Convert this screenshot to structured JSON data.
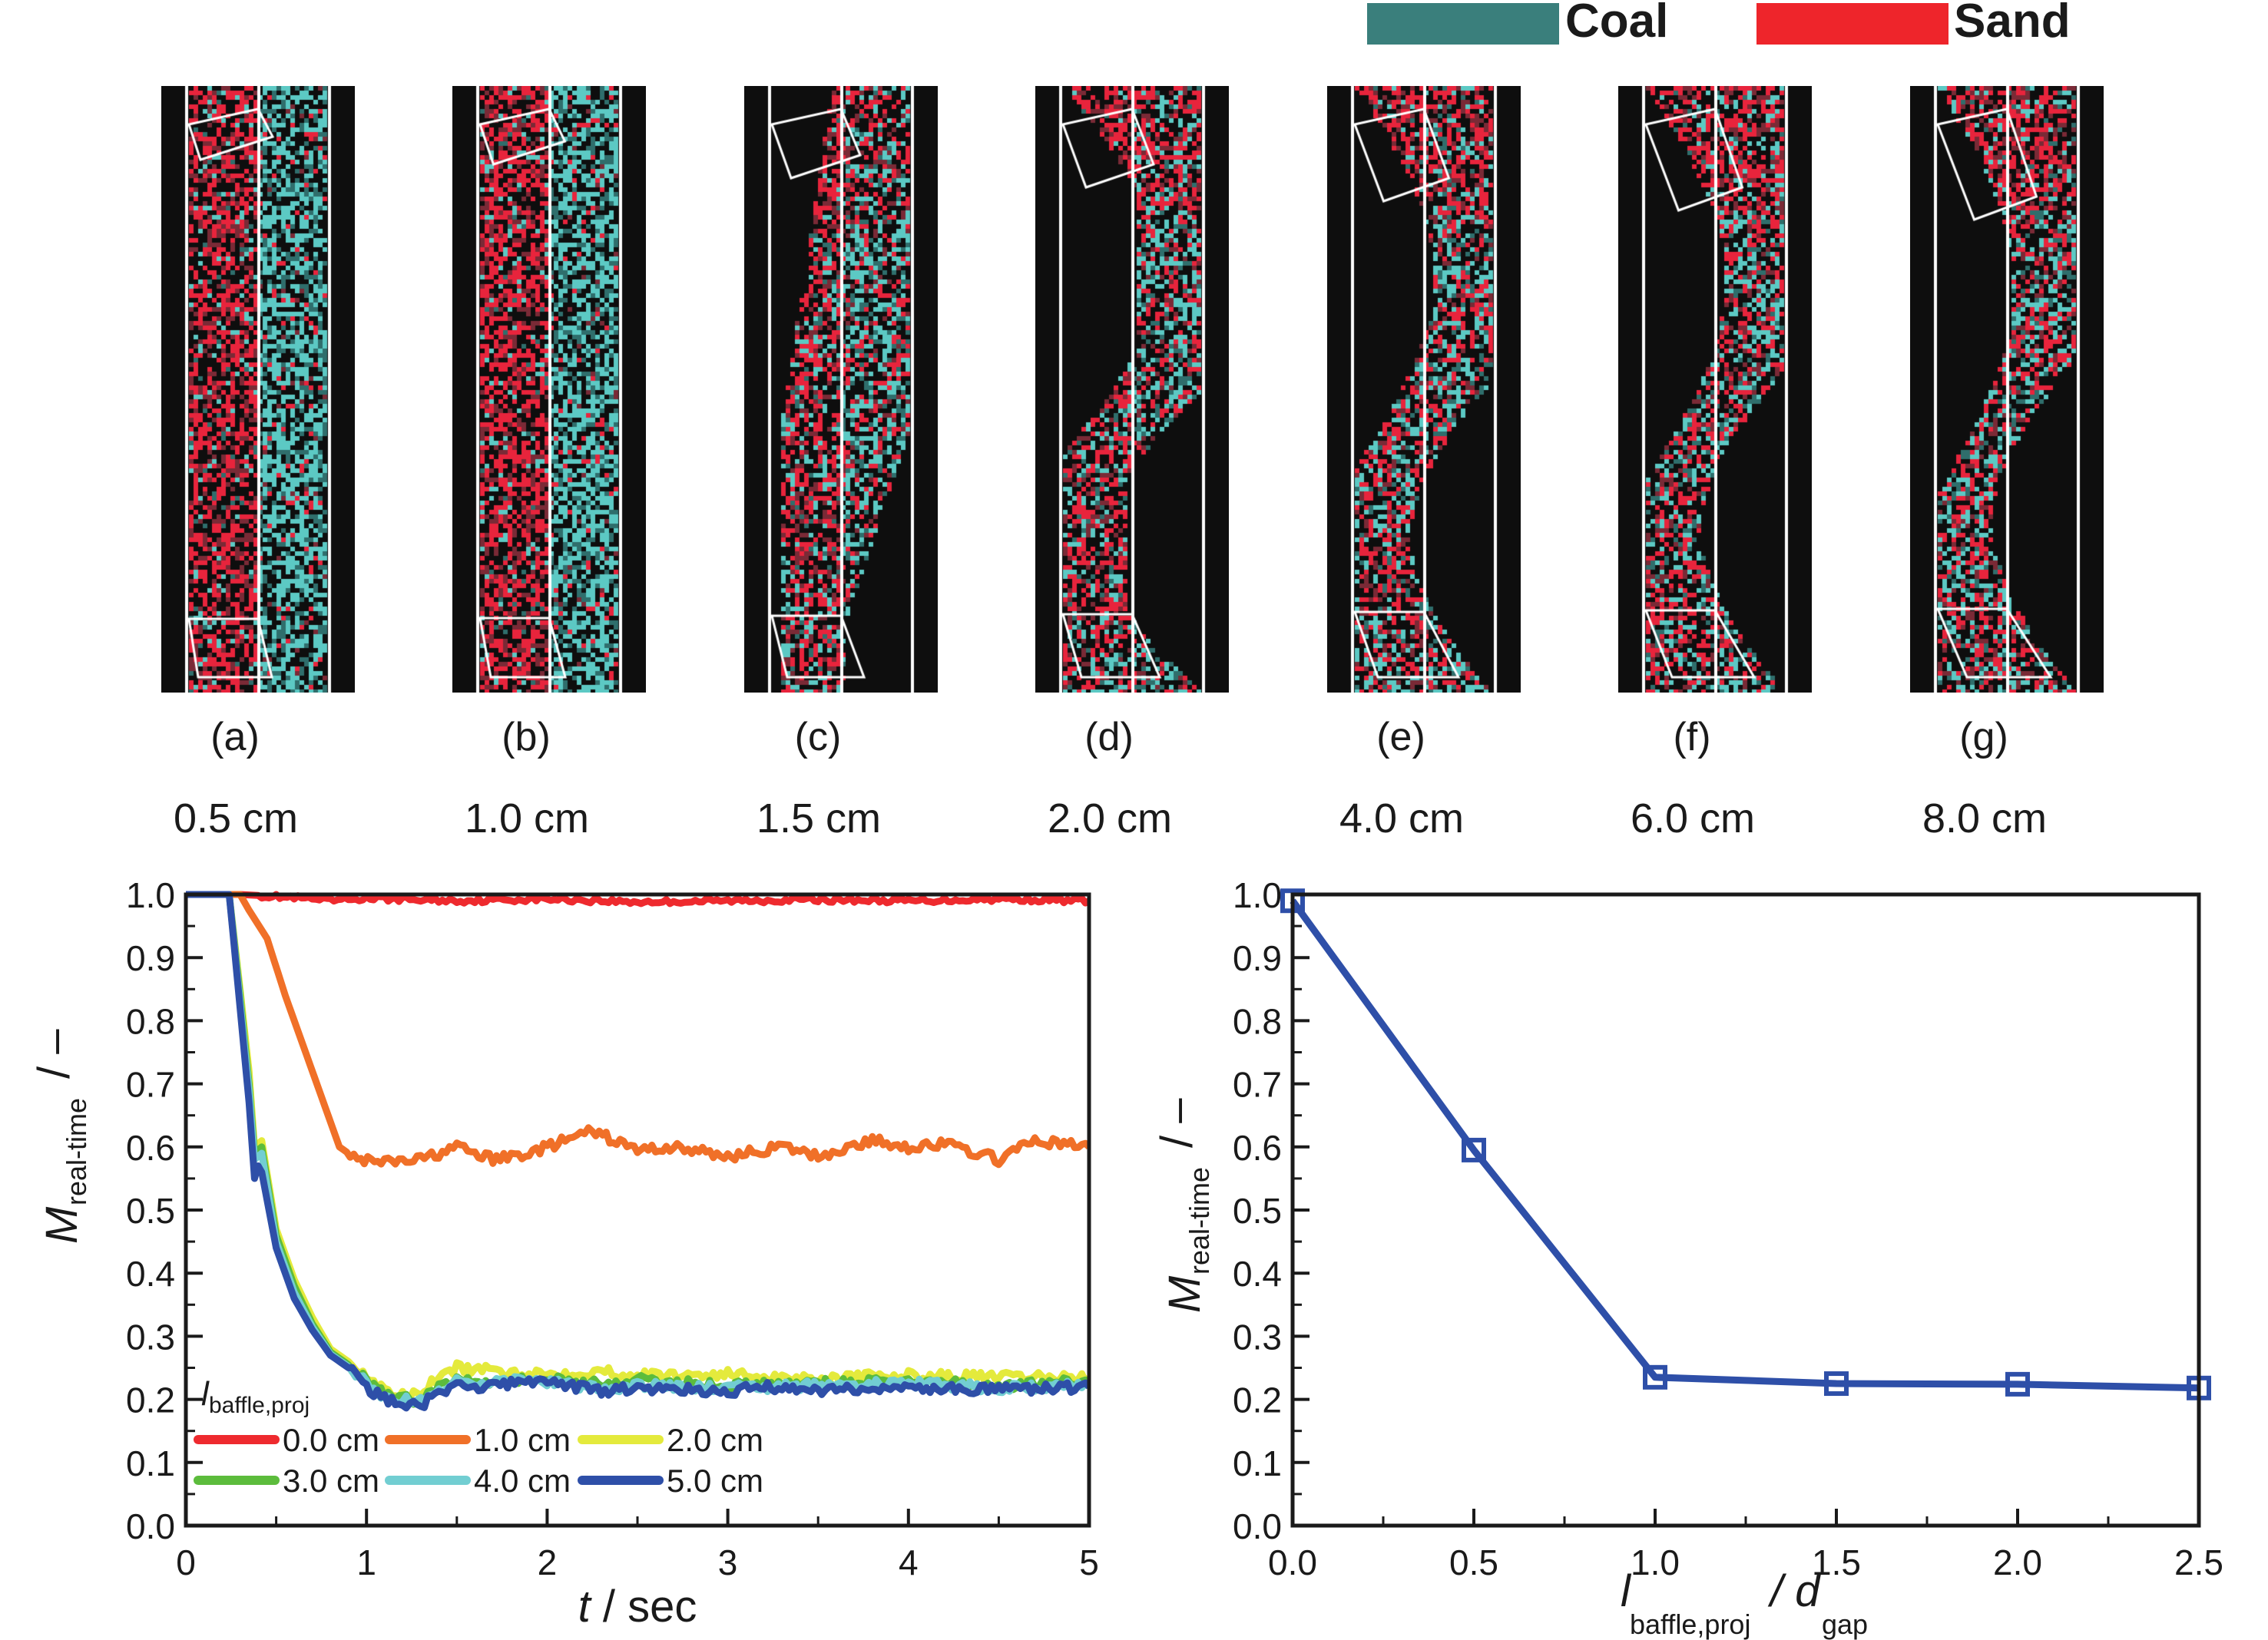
{
  "legend": {
    "items": [
      {
        "label": "Coal",
        "color": "#3a7f7c"
      },
      {
        "label": "Sand",
        "color": "#ee252b"
      }
    ]
  },
  "panels": [
    {
      "letter": "(a)",
      "value": "0.5 cm"
    },
    {
      "letter": "(b)",
      "value": "1.0 cm"
    },
    {
      "letter": "(c)",
      "value": "1.5 cm"
    },
    {
      "letter": "(d)",
      "value": "2.0 cm"
    },
    {
      "letter": "(e)",
      "value": "4.0 cm"
    },
    {
      "letter": "(f)",
      "value": "6.0 cm"
    },
    {
      "letter": "(g)",
      "value": "8.0 cm"
    }
  ],
  "colors": {
    "panel_background": "#0e0e0e",
    "coal_particle": "#5cc9c4",
    "sand_particle": "#e8243c",
    "wall": "#ffffff"
  },
  "chart_data": [
    {
      "type": "line",
      "title": "",
      "xlabel": "t / sec",
      "ylabel": "M real-time / –",
      "ylabel_main": "M",
      "ylabel_sub": "real-time",
      "ylabel_unit": "/ –",
      "xlim": [
        0,
        5
      ],
      "ylim": [
        0.0,
        1.0
      ],
      "x_ticks": [
        "0",
        "1",
        "2",
        "3",
        "4",
        "5"
      ],
      "y_ticks": [
        "0.0",
        "0.1",
        "0.2",
        "0.3",
        "0.4",
        "0.5",
        "0.6",
        "0.7",
        "0.8",
        "0.9",
        "1.0"
      ],
      "grid": false,
      "legend_title_main": "l",
      "legend_title_sub": "baffle,proj",
      "legend_position": "bottom-left",
      "series": [
        {
          "name": "0.0 cm",
          "color": "#ee2a2e",
          "x": [
            0,
            0.3,
            0.5,
            0.8,
            1.0,
            1.5,
            2.0,
            2.5,
            3.0,
            3.5,
            4.0,
            4.5,
            5.0
          ],
          "y": [
            1.0,
            1.0,
            0.997,
            0.99,
            0.994,
            0.99,
            0.993,
            0.988,
            0.99,
            0.992,
            0.99,
            0.993,
            0.99
          ]
        },
        {
          "name": "1.0 cm",
          "color": "#f07028",
          "x": [
            0,
            0.3,
            0.35,
            0.45,
            0.55,
            0.65,
            0.75,
            0.85,
            0.95,
            1.1,
            1.3,
            1.5,
            1.7,
            1.9,
            2.1,
            2.25,
            2.5,
            2.7,
            3.0,
            3.3,
            3.5,
            3.8,
            4.0,
            4.2,
            4.5,
            4.7,
            5.0
          ],
          "y": [
            1.0,
            1.0,
            0.975,
            0.93,
            0.84,
            0.76,
            0.68,
            0.6,
            0.58,
            0.575,
            0.58,
            0.6,
            0.58,
            0.59,
            0.61,
            0.625,
            0.595,
            0.6,
            0.585,
            0.6,
            0.585,
            0.61,
            0.6,
            0.605,
            0.58,
            0.61,
            0.6
          ]
        },
        {
          "name": "2.0 cm",
          "color": "#e4ea3c",
          "x": [
            0,
            0.24,
            0.3,
            0.35,
            0.38,
            0.42,
            0.5,
            0.6,
            0.7,
            0.8,
            0.9,
            1.0,
            1.1,
            1.2,
            1.3,
            1.4,
            1.5,
            1.7,
            2.0,
            2.3,
            2.5,
            3.0,
            3.5,
            4.0,
            4.5,
            5.0
          ],
          "y": [
            1.0,
            1.0,
            0.85,
            0.72,
            0.6,
            0.61,
            0.47,
            0.39,
            0.33,
            0.28,
            0.26,
            0.235,
            0.215,
            0.205,
            0.21,
            0.235,
            0.25,
            0.245,
            0.24,
            0.245,
            0.238,
            0.24,
            0.233,
            0.238,
            0.235,
            0.235
          ]
        },
        {
          "name": "3.0 cm",
          "color": "#5cbc3c",
          "x": [
            0,
            0.24,
            0.3,
            0.35,
            0.38,
            0.42,
            0.5,
            0.6,
            0.7,
            0.8,
            0.9,
            1.0,
            1.1,
            1.2,
            1.3,
            1.4,
            1.5,
            1.7,
            2.0,
            2.3,
            2.5,
            3.0,
            3.5,
            4.0,
            4.5,
            5.0
          ],
          "y": [
            1.0,
            1.0,
            0.84,
            0.7,
            0.59,
            0.6,
            0.46,
            0.38,
            0.32,
            0.275,
            0.255,
            0.23,
            0.21,
            0.2,
            0.2,
            0.22,
            0.232,
            0.23,
            0.232,
            0.225,
            0.23,
            0.222,
            0.225,
            0.228,
            0.222,
            0.228
          ]
        },
        {
          "name": "4.0 cm",
          "color": "#72ced2",
          "x": [
            0,
            0.24,
            0.3,
            0.35,
            0.38,
            0.42,
            0.5,
            0.6,
            0.7,
            0.8,
            0.9,
            1.0,
            1.1,
            1.2,
            1.3,
            1.4,
            1.5,
            1.7,
            2.0,
            2.3,
            2.5,
            3.0,
            3.5,
            4.0,
            4.5,
            5.0
          ],
          "y": [
            1.0,
            1.0,
            0.83,
            0.69,
            0.58,
            0.59,
            0.45,
            0.37,
            0.315,
            0.272,
            0.252,
            0.225,
            0.205,
            0.198,
            0.198,
            0.215,
            0.228,
            0.23,
            0.228,
            0.215,
            0.222,
            0.218,
            0.222,
            0.225,
            0.218,
            0.222
          ]
        },
        {
          "name": "5.0 cm",
          "color": "#2e4fa8",
          "x": [
            0,
            0.24,
            0.3,
            0.35,
            0.38,
            0.4,
            0.42,
            0.5,
            0.6,
            0.7,
            0.8,
            0.9,
            1.0,
            1.1,
            1.2,
            1.3,
            1.4,
            1.5,
            1.7,
            2.0,
            2.3,
            2.5,
            3.0,
            3.2,
            3.5,
            4.0,
            4.5,
            5.0
          ],
          "y": [
            1.0,
            1.0,
            0.82,
            0.67,
            0.55,
            0.57,
            0.56,
            0.44,
            0.36,
            0.31,
            0.27,
            0.25,
            0.22,
            0.2,
            0.19,
            0.19,
            0.21,
            0.22,
            0.222,
            0.23,
            0.212,
            0.218,
            0.212,
            0.22,
            0.215,
            0.218,
            0.215,
            0.22
          ]
        }
      ]
    },
    {
      "type": "line",
      "title": "",
      "xlabel": "l baffle,proj / d gap",
      "xlabel_main1": "l",
      "xlabel_sub1": "baffle,proj",
      "xlabel_main2": "/ d",
      "xlabel_sub2": "gap",
      "ylabel": "M real-time / –",
      "ylabel_main": "M",
      "ylabel_sub": "real-time",
      "ylabel_unit": "/ –",
      "xlim": [
        0.0,
        2.5
      ],
      "ylim": [
        0.0,
        1.0
      ],
      "x_ticks": [
        "0.0",
        "0.5",
        "1.0",
        "1.5",
        "2.0",
        "2.5"
      ],
      "y_ticks": [
        "0.0",
        "0.1",
        "0.2",
        "0.3",
        "0.4",
        "0.5",
        "0.6",
        "0.7",
        "0.8",
        "0.9",
        "1.0"
      ],
      "grid": false,
      "marker": "open-square",
      "series": [
        {
          "name": "M real-time",
          "color": "#2e4fa8",
          "x": [
            0.0,
            0.5,
            1.0,
            1.5,
            2.0,
            2.5
          ],
          "y": [
            0.99,
            0.595,
            0.235,
            0.225,
            0.224,
            0.218
          ]
        }
      ]
    }
  ]
}
